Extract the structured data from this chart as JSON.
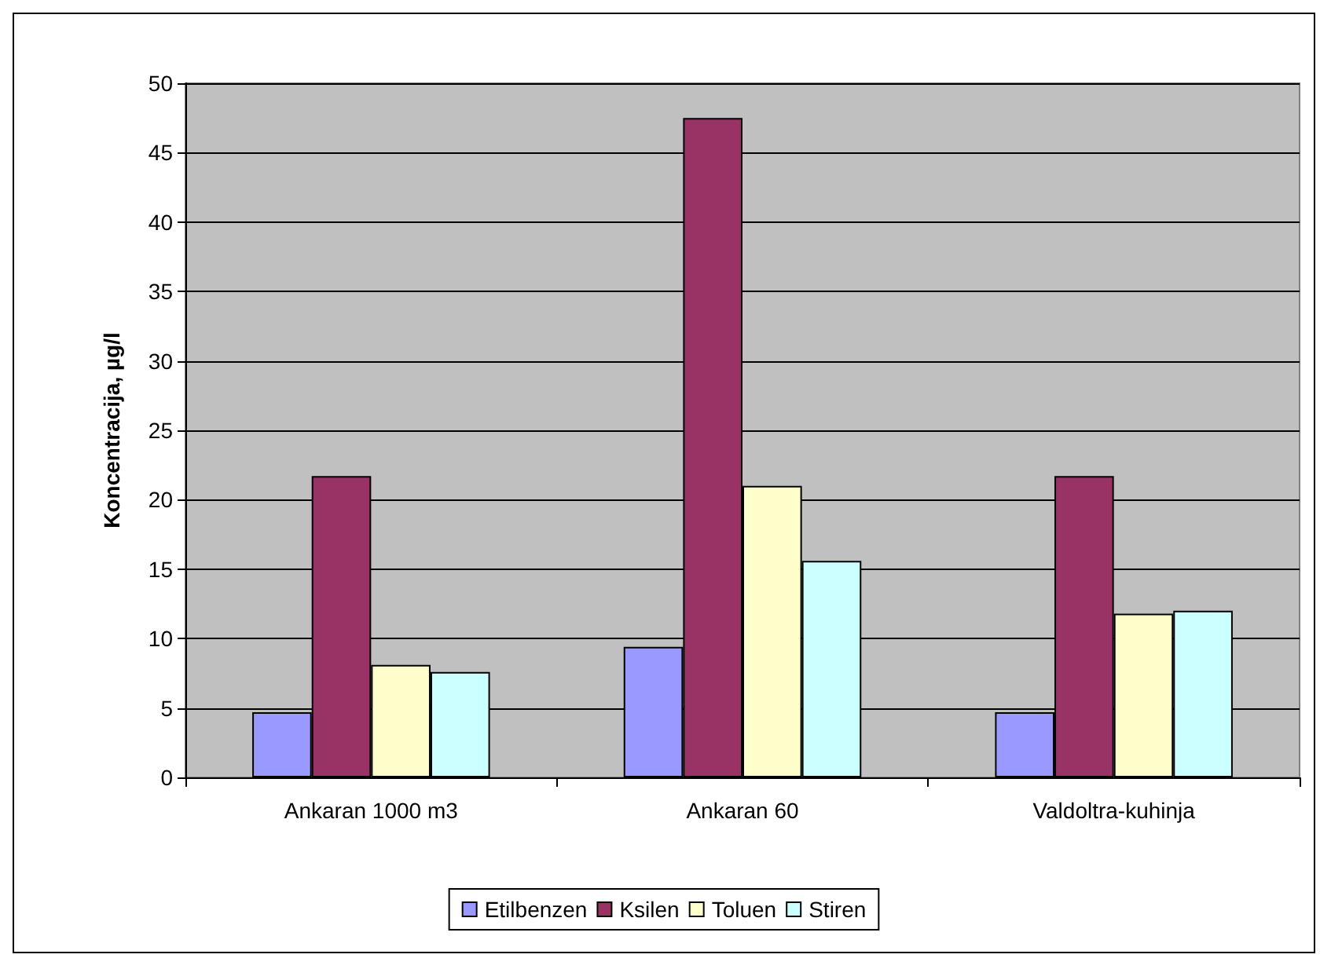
{
  "chart_data": {
    "type": "bar",
    "ylabel": "Koncentracija, µg/l",
    "categories": [
      "Ankaran 1000 m3",
      "Ankaran 60",
      "Valdoltra-kuhinja"
    ],
    "series": [
      {
        "name": "Etilbenzen",
        "color": "#9999ff",
        "values": [
          4.7,
          9.4,
          4.7
        ]
      },
      {
        "name": "Ksilen",
        "color": "#993366",
        "values": [
          21.7,
          47.5,
          21.7
        ]
      },
      {
        "name": "Toluen",
        "color": "#ffffcc",
        "values": [
          8.1,
          21.0,
          11.8
        ]
      },
      {
        "name": "Stiren",
        "color": "#ccffff",
        "values": [
          7.6,
          15.6,
          12.0
        ]
      }
    ],
    "ylim": [
      0,
      50
    ],
    "yticks": [
      0,
      5,
      10,
      15,
      20,
      25,
      30,
      35,
      40,
      45,
      50
    ],
    "grid": "y",
    "legend": "bottom"
  }
}
